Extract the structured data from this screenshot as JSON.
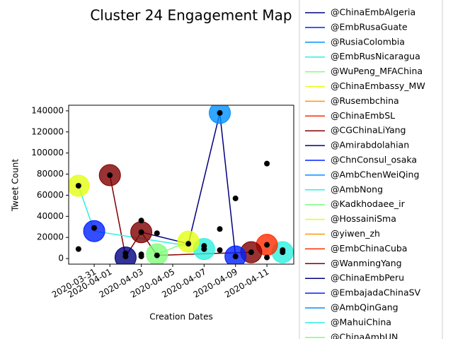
{
  "chart_data": {
    "type": "bubble",
    "title": "Cluster 24 Engagement Map",
    "x_label": "Creation Dates",
    "y_label": "Tweet Count",
    "xlim": [
      "2020-03-29T09:00",
      "2020-04-12T17:00"
    ],
    "xticks": [
      "2020-03-31",
      "2020-04-01",
      "2020-04-03",
      "2020-04-05",
      "2020-04-07",
      "2020-04-09",
      "2020-04-11"
    ],
    "ylim": [
      -5300,
      145300
    ],
    "yticks": [
      0,
      20000,
      40000,
      60000,
      80000,
      100000,
      120000,
      140000
    ],
    "series": [
      {
        "name": "@ChinaEmbAlgeria",
        "color": "#00007f",
        "x": [
          "2020-04-02"
        ],
        "values": [
          1000
        ],
        "bubble": true
      },
      {
        "name": "@EmbRusaGuate",
        "color": "#0020ff",
        "x": [
          "2020-03-31"
        ],
        "values": [
          26000
        ],
        "bubble": true
      },
      {
        "name": "@RusiaColombia",
        "color": "#0090ff",
        "x": [
          "2020-04-08"
        ],
        "values": [
          138000
        ],
        "bubble": true
      },
      {
        "name": "@EmbRusNicaragua",
        "color": "#2ef0e0",
        "x": [
          "2020-04-07",
          "2020-04-12"
        ],
        "values": [
          9000,
          6000
        ],
        "bubble": true
      },
      {
        "name": "@WuPeng_MFAChina",
        "color": "#80ff7b",
        "x": [
          "2020-04-04"
        ],
        "values": [
          4000
        ],
        "bubble": true
      },
      {
        "name": "@ChinaEmbassy_MW",
        "color": "#e4ff13",
        "x": [
          "2020-03-30",
          "2020-04-06"
        ],
        "values": [
          69000,
          16000
        ],
        "bubble": true
      },
      {
        "name": "@Rusembchina",
        "color": "#ff9a00"
      },
      {
        "name": "@ChinaEmbSL",
        "color": "#ff2a00",
        "x": [
          "2020-04-11"
        ],
        "values": [
          13000
        ],
        "bubble": true
      },
      {
        "name": "@CGChinaLiYang",
        "color": "#7f0000",
        "x": [
          "2020-04-01",
          "2020-04-03",
          "2020-04-10"
        ],
        "values": [
          79000,
          25000,
          6000
        ],
        "bubble": true
      },
      {
        "name": "@Amirabdolahian",
        "color": "#00007f",
        "x": [
          "2020-04-03",
          "2020-04-06",
          "2020-04-08",
          "2020-04-09"
        ],
        "values": [
          25000,
          14000,
          138000,
          2000
        ],
        "line": true
      },
      {
        "name": "@ChnConsul_osaka",
        "color": "#0020ff",
        "x": [
          "2020-04-09"
        ],
        "values": [
          2000
        ],
        "bubble": true
      },
      {
        "name": "@AmbChenWeiQing",
        "color": "#0090ff"
      },
      {
        "name": "@AmbNong",
        "color": "#2ef0e0"
      },
      {
        "name": "@Kadkhodaee_ir",
        "color": "#80ff7b",
        "x": [
          "2020-04-04",
          "2020-04-06"
        ],
        "values": [
          4000,
          16000
        ],
        "line": true
      },
      {
        "name": "@HossainiSma",
        "color": "#e4ff13"
      },
      {
        "name": "@yiwen_zh",
        "color": "#ff9a00"
      },
      {
        "name": "@EmbChinaCuba",
        "color": "#ff2a00"
      },
      {
        "name": "@WanmingYang",
        "color": "#7f0000",
        "x": [
          "2020-04-01",
          "2020-04-02",
          "2020-04-03",
          "2020-04-04",
          "2020-04-10"
        ],
        "values": [
          79000,
          2000,
          25000,
          3000,
          6000
        ],
        "line": true
      },
      {
        "name": "@ChinaEmbPeru",
        "color": "#00007f"
      },
      {
        "name": "@EmbajadaChinaSV",
        "color": "#0020ff"
      },
      {
        "name": "@AmbQinGang",
        "color": "#0090ff"
      },
      {
        "name": "@MahuiChina",
        "color": "#2ef0e0",
        "x": [
          "2020-03-30",
          "2020-03-31",
          "2020-04-06"
        ],
        "values": [
          69000,
          26000,
          12000
        ],
        "line": true
      },
      {
        "name": "@ChinaAmbUN",
        "color": "#80ff7b"
      }
    ],
    "points": {
      "color": "#000000",
      "x": [
        "2020-03-30",
        "2020-03-30",
        "2020-03-31",
        "2020-04-01",
        "2020-04-02",
        "2020-04-02",
        "2020-04-03",
        "2020-04-03",
        "2020-04-03",
        "2020-04-03",
        "2020-04-04",
        "2020-04-04",
        "2020-04-06",
        "2020-04-07",
        "2020-04-07",
        "2020-04-08",
        "2020-04-08",
        "2020-04-08",
        "2020-04-09",
        "2020-04-09",
        "2020-04-10",
        "2020-04-11",
        "2020-04-11",
        "2020-04-11",
        "2020-04-12",
        "2020-04-12"
      ],
      "values": [
        69000,
        9000,
        29000,
        79000,
        2000,
        5000,
        36000,
        25000,
        4000,
        2000,
        24000,
        3000,
        14000,
        12000,
        9000,
        138000,
        28000,
        8000,
        57000,
        2000,
        6000,
        90000,
        13000,
        1000,
        8000,
        6000
      ]
    }
  }
}
